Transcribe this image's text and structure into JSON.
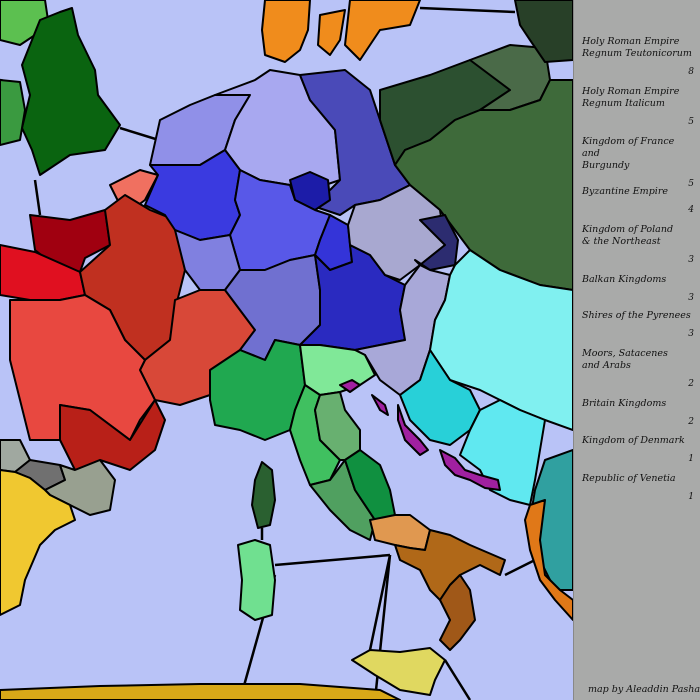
{
  "map": {
    "sea_color": "#b9c3f7",
    "continent_colors": {
      "holy_roman_empire_teutonicorum": "#4a4ad8",
      "holy_roman_empire_italicum": "#30b050",
      "kingdom_of_france_and_burgundy": "#d83a30",
      "byzantine_empire": "#40e0e8",
      "kingdom_of_poland": "#3a6a3a",
      "balkan_kingdoms": "#a8a8d8",
      "shires_of_the_pyrenees": "#a0a8a0",
      "moors_saracenes_arabs": "#d8a818",
      "britain_kingdoms": "#0a6410",
      "kingdom_of_denmark": "#f08c1c",
      "republic_of_venetia": "#a020a0"
    }
  },
  "legend": {
    "entries": [
      {
        "name": "Holy Roman Empire\n   Regnum Teutonicorum",
        "bonus": "8"
      },
      {
        "name": "Holy Roman Empire\n   Regnum Italicum",
        "bonus": "5"
      },
      {
        "name": "Kingdom of France and\n   Burgundy",
        "bonus": "5"
      },
      {
        "name": "Byzantine Empire",
        "bonus": "4"
      },
      {
        "name": "Kingdom of Poland\n   & the Northeast",
        "bonus": "3"
      },
      {
        "name": "Balkan Kingdoms",
        "bonus": "3"
      },
      {
        "name": "Shires of the Pyrenees",
        "bonus": "3"
      },
      {
        "name": "Moors, Satacenes\n   and Arabs",
        "bonus": "2"
      },
      {
        "name": "Britain Kingdoms",
        "bonus": "2"
      },
      {
        "name": "Kingdom of Denmark",
        "bonus": "1"
      },
      {
        "name": "Republic of Venetia",
        "bonus": "1"
      }
    ],
    "credit": "map by Aleaddin Pasha"
  }
}
